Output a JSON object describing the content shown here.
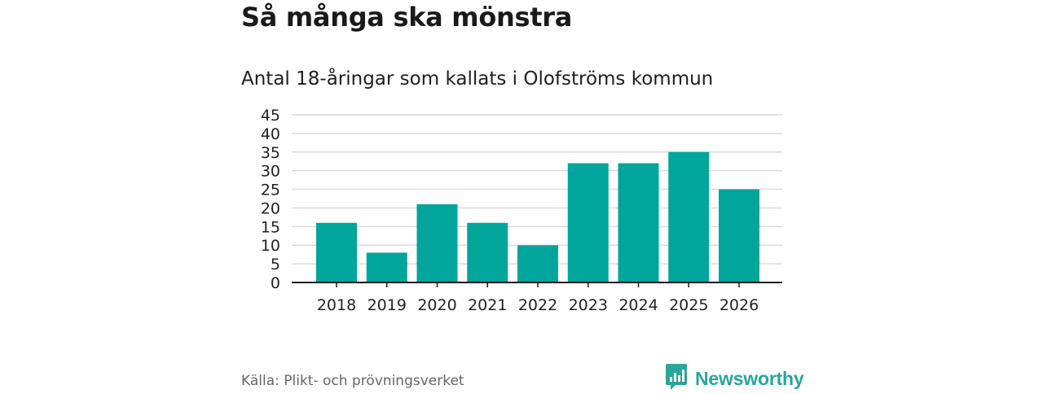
{
  "header": {
    "title": "Så många ska mönstra",
    "subtitle": "Antal 18-åringar som kallats i Olofströms kommun"
  },
  "chart_data": {
    "type": "bar",
    "title": "Så många ska mönstra",
    "subtitle": "Antal 18-åringar som kallats i Olofströms kommun",
    "xlabel": "",
    "ylabel": "",
    "categories": [
      "2018",
      "2019",
      "2020",
      "2021",
      "2022",
      "2023",
      "2024",
      "2025",
      "2026"
    ],
    "values": [
      16,
      8,
      21,
      16,
      10,
      32,
      32,
      35,
      25
    ],
    "ylim": [
      0,
      45
    ],
    "yticks": [
      0,
      5,
      10,
      15,
      20,
      25,
      30,
      35,
      40,
      45
    ],
    "grid": true,
    "bar_color": "#00a59b",
    "grid_color": "#d9d9d9",
    "axis_color": "#1a1a1a"
  },
  "footer": {
    "source": "Källa: Plikt- och prövningsverket",
    "brand_name": "Newsworthy",
    "brand_icon": "newsworthy-logo-icon",
    "brand_color": "#2aa59a"
  }
}
